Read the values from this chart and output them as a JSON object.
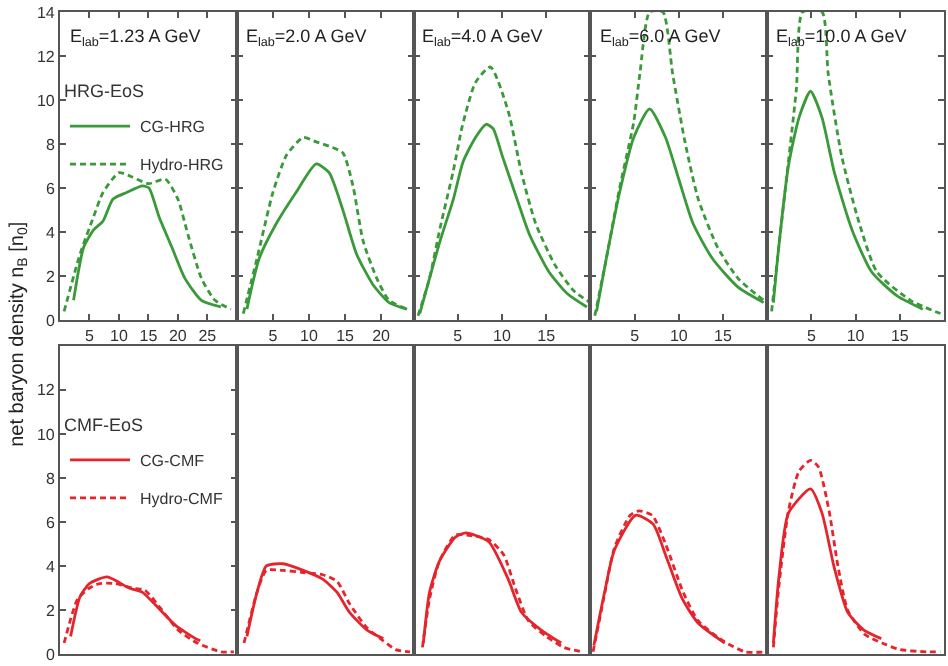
{
  "chart_data": [
    {
      "type": "line",
      "title": "E$_{lab}$=1.23 A GeV",
      "ylabel": "net baryon density n$_{B}$ [n$_{0}$]",
      "legend": "top left",
      "legend_title": "HRG-EoS",
      "xlim": [
        0,
        30
      ],
      "xticks": [
        5,
        10,
        15,
        20,
        25
      ],
      "ylim": [
        0,
        14
      ],
      "yticks": [
        0,
        2,
        4,
        6,
        8,
        10,
        12,
        14
      ],
      "series": [
        {
          "name": "CG-HRG",
          "color": "#3a9a3a",
          "line_style": "solid",
          "x": [
            2.3,
            4,
            5.7,
            7.3,
            9,
            11.3,
            14,
            15.1,
            16.8,
            19,
            21.2,
            24,
            27.3
          ],
          "values": [
            0.9,
            3.3,
            4.1,
            4.5,
            5.5,
            5.8,
            6.1,
            6.0,
            4.7,
            3.3,
            1.9,
            0.9,
            0.6
          ]
        },
        {
          "name": "Hydro-HRG",
          "color": "#3a9a3a",
          "line_style": "dashed",
          "x": [
            0.7,
            3.4,
            5.7,
            7.3,
            10,
            12.3,
            15,
            17.9,
            20,
            21.7,
            24,
            26.3,
            29
          ],
          "values": [
            0.4,
            3.0,
            4.7,
            5.8,
            6.7,
            6.5,
            6.2,
            6.4,
            5.5,
            3.9,
            1.9,
            0.9,
            0.5
          ]
        }
      ]
    },
    {
      "type": "line",
      "title": "E$_{lab}$=2.0 A GeV",
      "xlim": [
        0,
        24.5
      ],
      "xticks": [
        5,
        10,
        15,
        20
      ],
      "ylim": [
        0,
        14
      ],
      "yticks": [
        0,
        2,
        4,
        6,
        8,
        10,
        12,
        14
      ],
      "tick_labels": "x",
      "series": [
        {
          "color": "#3a9a3a",
          "line_style": "solid",
          "x": [
            1.4,
            3.1,
            5.5,
            8.2,
            11,
            12.8,
            14.7,
            16.6,
            18.9,
            21.1,
            23.6
          ],
          "values": [
            0.5,
            2.8,
            4.4,
            5.8,
            7.1,
            6.7,
            5.0,
            3.0,
            1.6,
            0.8,
            0.5
          ]
        },
        {
          "color": "#3a9a3a",
          "line_style": "dashed",
          "x": [
            0.9,
            2.8,
            5,
            6.9,
            9.2,
            11,
            12.8,
            14.7,
            16.1,
            17.5,
            19.4,
            21.1,
            23.6
          ],
          "values": [
            0.3,
            2.8,
            5.8,
            7.5,
            8.3,
            8.1,
            7.9,
            7.6,
            6.1,
            3.6,
            1.9,
            0.9,
            0.5
          ]
        }
      ]
    },
    {
      "type": "line",
      "title": "E$_{lab}$=4.0 A GeV",
      "xlim": [
        0,
        20
      ],
      "xticks": [
        5,
        10,
        15
      ],
      "ylim": [
        0,
        14
      ],
      "yticks": [
        0,
        2,
        4,
        6,
        8,
        10,
        12,
        14
      ],
      "tick_labels": "x",
      "series": [
        {
          "color": "#3a9a3a",
          "line_style": "solid",
          "x": [
            0.7,
            1.8,
            3,
            4.5,
            5.6,
            7,
            8.2,
            9,
            10,
            11.7,
            13.1,
            15.3,
            17.4,
            19.6
          ],
          "values": [
            0.3,
            1.9,
            3.6,
            5.5,
            7.2,
            8.3,
            8.9,
            8.7,
            7.5,
            5.5,
            3.9,
            2.2,
            1.2,
            0.6
          ]
        },
        {
          "color": "#3a9a3a",
          "line_style": "dashed",
          "x": [
            0.5,
            1.8,
            3,
            4.5,
            5.5,
            7,
            8.7,
            10.7,
            12.2,
            13.8,
            16,
            18.2,
            20
          ],
          "values": [
            0.2,
            1.9,
            4.2,
            6.8,
            8.8,
            10.8,
            11.5,
            9.5,
            6.7,
            4.4,
            2.5,
            1.3,
            0.8
          ]
        }
      ]
    },
    {
      "type": "line",
      "title": "E$_{lab}$=6.0 A GeV",
      "xlim": [
        0,
        20
      ],
      "xticks": [
        5,
        10,
        15
      ],
      "ylim": [
        0,
        14
      ],
      "yticks": [
        0,
        2,
        4,
        6,
        8,
        10,
        12,
        14
      ],
      "tick_labels": "x",
      "series": [
        {
          "color": "#3a9a3a",
          "line_style": "solid",
          "x": [
            0.7,
            1.8,
            3.3,
            4.9,
            6.7,
            8.5,
            10,
            11.6,
            13.8,
            16.7,
            19.6
          ],
          "values": [
            0.4,
            2.8,
            5.8,
            8.3,
            9.6,
            8.3,
            6.4,
            4.4,
            2.8,
            1.5,
            0.8
          ]
        },
        {
          "color": "#3a9a3a",
          "line_style": "dashed",
          "x": [
            0.5,
            1.8,
            3.3,
            4.9,
            5.6,
            6.7,
            8.2,
            9.3,
            10.7,
            12.2,
            14.4,
            16.7,
            19.6
          ],
          "values": [
            0.2,
            2.8,
            6.0,
            9.0,
            11.2,
            14,
            14,
            11.2,
            8.1,
            5.5,
            3.3,
            1.9,
            0.9
          ]
        }
      ]
    },
    {
      "type": "line",
      "title": "E$_{lab}$=10.0 A GeV",
      "xlim": [
        0,
        20
      ],
      "xticks": [
        5,
        10,
        15
      ],
      "ylim": [
        0,
        14
      ],
      "yticks": [
        0,
        2,
        4,
        6,
        8,
        10,
        12,
        14
      ],
      "tick_labels": "x",
      "series": [
        {
          "color": "#3a9a3a",
          "line_style": "solid",
          "x": [
            0.7,
            1.3,
            2.4,
            3.6,
            4.9,
            6.2,
            7.6,
            9.6,
            11.8,
            14.7,
            17.6
          ],
          "values": [
            0.8,
            3.3,
            7.0,
            9.2,
            10.4,
            9.2,
            6.7,
            4.1,
            2.2,
            1.1,
            0.5
          ]
        },
        {
          "color": "#3a9a3a",
          "line_style": "dashed",
          "x": [
            0.5,
            1.3,
            2.4,
            3.3,
            4,
            6.2,
            6.9,
            8.4,
            10.2,
            12.4,
            16.2,
            19.6
          ],
          "values": [
            0.4,
            3.3,
            7.2,
            10.5,
            14,
            14,
            11.2,
            7.5,
            4.7,
            2.2,
            0.9,
            0.3
          ]
        }
      ]
    },
    {
      "type": "line",
      "legend": "top left",
      "legend_title": "CMF-EoS",
      "xlim": [
        0,
        30
      ],
      "ylim": [
        0,
        14
      ],
      "yticks": [
        0,
        2,
        4,
        6,
        8,
        10,
        12
      ],
      "tick_labels": "y",
      "series": [
        {
          "name": "CG-CMF",
          "color": "#e5242c",
          "line_style": "solid",
          "x": [
            1.8,
            3.4,
            5,
            8,
            11.7,
            14,
            16.3,
            19.6,
            23,
            23.8
          ],
          "values": [
            0.8,
            2.6,
            3.2,
            3.5,
            3.0,
            2.8,
            2.2,
            1.3,
            0.7,
            0.6
          ]
        },
        {
          "name": "Hydro-CMF",
          "color": "#e5242c",
          "line_style": "dashed",
          "x": [
            0.7,
            3,
            5,
            6.7,
            9.4,
            12.2,
            14.4,
            16.7,
            20,
            23.3,
            27.3,
            29.5
          ],
          "values": [
            0.5,
            2.5,
            3.0,
            3.2,
            3.2,
            3.0,
            2.9,
            2.2,
            1.1,
            0.5,
            0.1,
            0.1
          ]
        }
      ]
    },
    {
      "type": "line",
      "xlim": [
        0,
        24.5
      ],
      "ylim": [
        0,
        14
      ],
      "tick_labels": false,
      "series": [
        {
          "color": "#e5242c",
          "line_style": "solid",
          "x": [
            1.4,
            2.8,
            4.1,
            6.4,
            9.2,
            11.9,
            13.9,
            15.6,
            18,
            20.3
          ],
          "values": [
            0.8,
            2.8,
            4.0,
            4.1,
            3.8,
            3.4,
            2.8,
            1.9,
            1.1,
            0.7
          ]
        },
        {
          "color": "#e5242c",
          "line_style": "dashed",
          "x": [
            1,
            2.8,
            4.1,
            6.4,
            9.2,
            11.9,
            13.9,
            15.6,
            18,
            20.3,
            22,
            24
          ],
          "values": [
            0.5,
            2.8,
            3.8,
            3.8,
            3.7,
            3.6,
            3.3,
            2.3,
            1.2,
            0.6,
            0.2,
            0.1
          ]
        }
      ]
    },
    {
      "type": "line",
      "xlim": [
        0,
        20
      ],
      "ylim": [
        0,
        14
      ],
      "tick_labels": false,
      "series": [
        {
          "color": "#e5242c",
          "line_style": "solid",
          "x": [
            1.1,
            1.8,
            2.9,
            4.7,
            5.9,
            8.5,
            10.7,
            12.2,
            14.4,
            16.7
          ],
          "values": [
            0.5,
            2.8,
            4.2,
            5.3,
            5.5,
            5.1,
            3.4,
            1.9,
            1.1,
            0.5
          ]
        },
        {
          "color": "#e5242c",
          "line_style": "dashed",
          "x": [
            1,
            1.8,
            2.9,
            4.7,
            6,
            8.5,
            10.2,
            11.5,
            13,
            15,
            17,
            19
          ],
          "values": [
            0.3,
            2.5,
            4.2,
            5.4,
            5.4,
            5.2,
            4.5,
            3.0,
            1.5,
            0.8,
            0.3,
            0.1
          ]
        }
      ]
    },
    {
      "type": "line",
      "xlim": [
        0,
        20
      ],
      "ylim": [
        0,
        14
      ],
      "tick_labels": false,
      "series": [
        {
          "color": "#e5242c",
          "line_style": "solid",
          "x": [
            0.4,
            1.6,
            2.7,
            5.1,
            7.1,
            8.5,
            10.4,
            12.2,
            15.2
          ],
          "values": [
            0.4,
            2.8,
            4.7,
            6.3,
            5.9,
            4.5,
            2.5,
            1.4,
            0.5
          ]
        },
        {
          "color": "#e5242c",
          "line_style": "dashed",
          "x": [
            0.3,
            1.5,
            2.7,
            4.5,
            5.5,
            7,
            8.5,
            10.5,
            12.2,
            15,
            17.5,
            20
          ],
          "values": [
            0.1,
            2.5,
            4.8,
            6.3,
            6.5,
            6.3,
            5.0,
            2.8,
            1.5,
            0.6,
            0.1,
            0.1
          ]
        }
      ]
    },
    {
      "type": "line",
      "xlim": [
        0,
        20
      ],
      "ylim": [
        0,
        14
      ],
      "tick_labels": false,
      "series": [
        {
          "color": "#e5242c",
          "line_style": "solid",
          "x": [
            0.7,
            1.3,
            2.4,
            4.9,
            6.2,
            7.6,
            9.1,
            10.9,
            12.9
          ],
          "values": [
            0.5,
            3.4,
            6.4,
            7.5,
            6.4,
            3.9,
            1.9,
            1.1,
            0.7
          ]
        },
        {
          "color": "#e5242c",
          "line_style": "dashed",
          "x": [
            0.7,
            1.3,
            2.4,
            3.6,
            4.9,
            5.8,
            7,
            8,
            9.1,
            11,
            13,
            15,
            18,
            19.6
          ],
          "values": [
            0.3,
            3.0,
            6.5,
            8.3,
            8.8,
            8.5,
            6.5,
            4.0,
            2.0,
            0.9,
            0.5,
            0.2,
            0.1,
            0.1
          ]
        }
      ]
    }
  ]
}
